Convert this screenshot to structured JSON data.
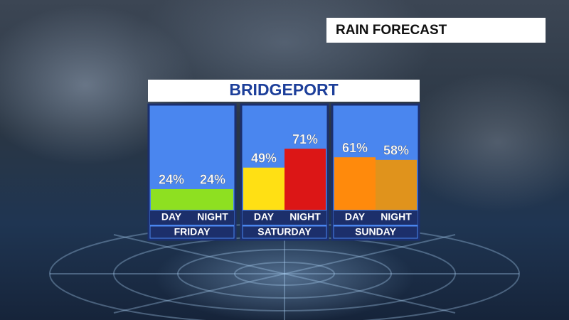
{
  "chart_data": {
    "type": "bar",
    "label": "RAIN FORECAST",
    "title": "BRIDGEPORT",
    "ylim": [
      0,
      100
    ],
    "groups": [
      {
        "name": "FRIDAY",
        "categories": [
          "DAY",
          "NIGHT"
        ],
        "values": [
          24,
          24
        ],
        "value_labels": [
          "24%",
          "24%"
        ],
        "colors": [
          "#8ee021",
          "#8ee021"
        ]
      },
      {
        "name": "SATURDAY",
        "categories": [
          "DAY",
          "NIGHT"
        ],
        "values": [
          49,
          71
        ],
        "value_labels": [
          "49%",
          "71%"
        ],
        "colors": [
          "#ffe014",
          "#dc1616"
        ]
      },
      {
        "name": "SUNDAY",
        "categories": [
          "DAY",
          "NIGHT"
        ],
        "values": [
          61,
          58
        ],
        "value_labels": [
          "61%",
          "58%"
        ],
        "colors": [
          "#ff8a0c",
          "#e0931c"
        ]
      }
    ]
  }
}
